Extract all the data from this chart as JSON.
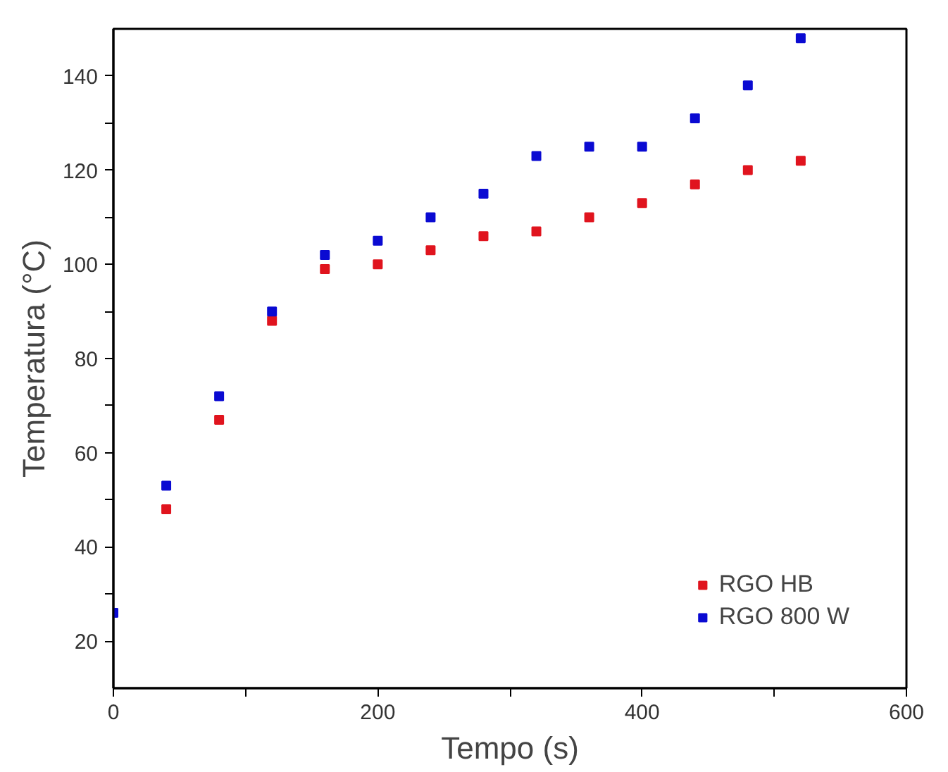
{
  "chart_data": {
    "type": "scatter",
    "xlabel": "Tempo (s)",
    "ylabel": "Temperatura (°C)",
    "x": [
      0,
      40,
      80,
      120,
      160,
      200,
      240,
      280,
      320,
      360,
      400,
      440,
      480,
      520
    ],
    "series": [
      {
        "name": "RGO HB",
        "color": "#e0141e",
        "values": [
          null,
          48,
          67,
          88,
          99,
          100,
          103,
          106,
          107,
          110,
          113,
          117,
          120,
          122
        ]
      },
      {
        "name": "RGO 800 W",
        "color": "#0a0ad2",
        "values": [
          26,
          53,
          72,
          90,
          102,
          105,
          110,
          115,
          123,
          125,
          125,
          131,
          138,
          148
        ]
      }
    ],
    "xlim": [
      0,
      600
    ],
    "ylim": [
      10,
      150
    ],
    "xticks": [
      0,
      {
        "value": 100,
        "label": null
      },
      200,
      {
        "value": 300,
        "label": null
      },
      400,
      {
        "value": 500,
        "label": null
      },
      600
    ],
    "yticks": [
      20,
      {
        "value": 30,
        "label": null
      },
      40,
      {
        "value": 50,
        "label": null
      },
      60,
      {
        "value": 70,
        "label": null
      },
      80,
      {
        "value": 90,
        "label": null
      },
      100,
      {
        "value": 110,
        "label": null
      },
      120,
      {
        "value": 130,
        "label": null
      },
      140
    ],
    "marker": "square",
    "grid": false,
    "legend": "bottom right"
  }
}
